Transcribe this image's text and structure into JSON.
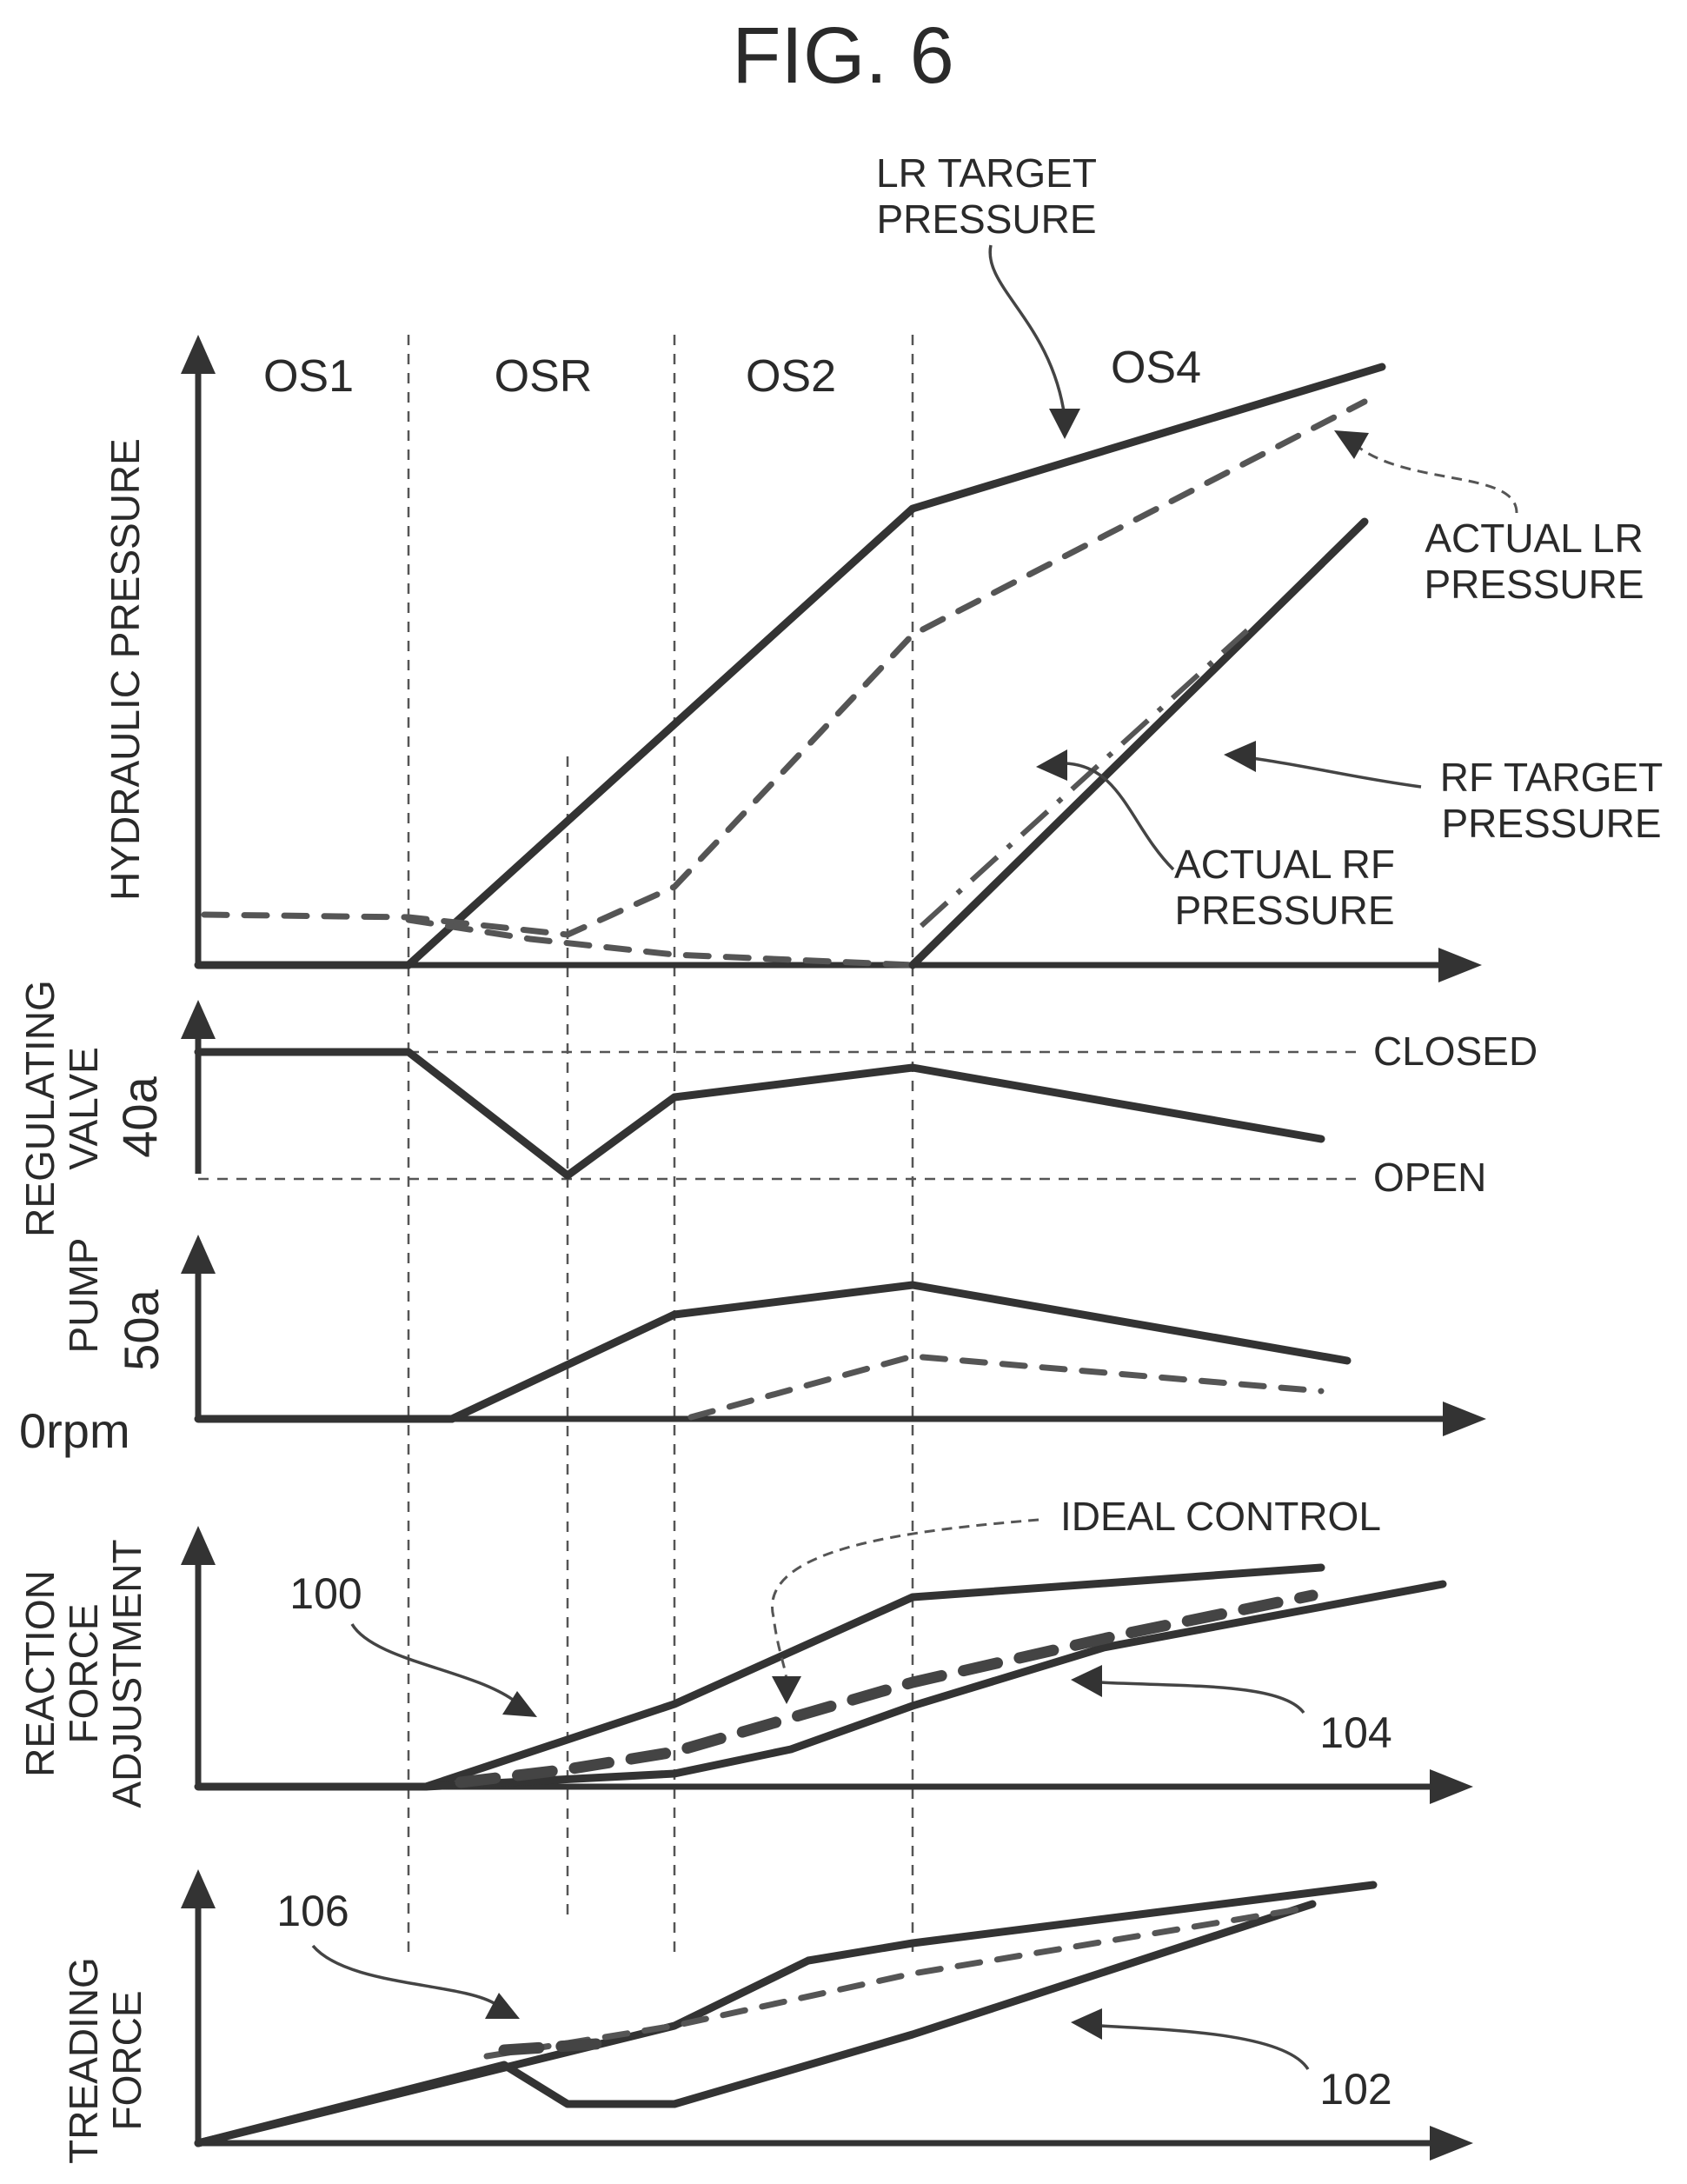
{
  "figure": {
    "title": "FIG. 6",
    "phases": [
      "OS1",
      "OSR",
      "OS2",
      "OS4"
    ]
  },
  "panels": {
    "hydraulic": {
      "axis_label": "HYDRAULIC PRESSURE",
      "labels": {
        "lr_target": [
          "LR TARGET",
          "PRESSURE"
        ],
        "actual_lr": [
          "ACTUAL LR",
          "PRESSURE"
        ],
        "rf_target": [
          "RF TARGET",
          "PRESSURE"
        ],
        "actual_rf": [
          "ACTUAL RF",
          "PRESSURE"
        ]
      }
    },
    "valve": {
      "axis_label": [
        "REGULATING",
        "VALVE"
      ],
      "axis_ref": "40a",
      "closed_label": "CLOSED",
      "open_label": "OPEN"
    },
    "pump": {
      "axis_label": "PUMP",
      "axis_ref": "50a",
      "zero_label": "0rpm"
    },
    "reaction": {
      "axis_label": [
        "REACTION",
        "FORCE",
        "ADJUSTMENT"
      ],
      "ideal_label": "IDEAL CONTROL",
      "ref_upper": "100",
      "ref_lower": "104"
    },
    "treading": {
      "axis_label": [
        "TREADING",
        "FORCE"
      ],
      "ref_upper": "106",
      "ref_lower": "102"
    }
  },
  "colors": {
    "ink": "#333333",
    "background": "#ffffff"
  }
}
